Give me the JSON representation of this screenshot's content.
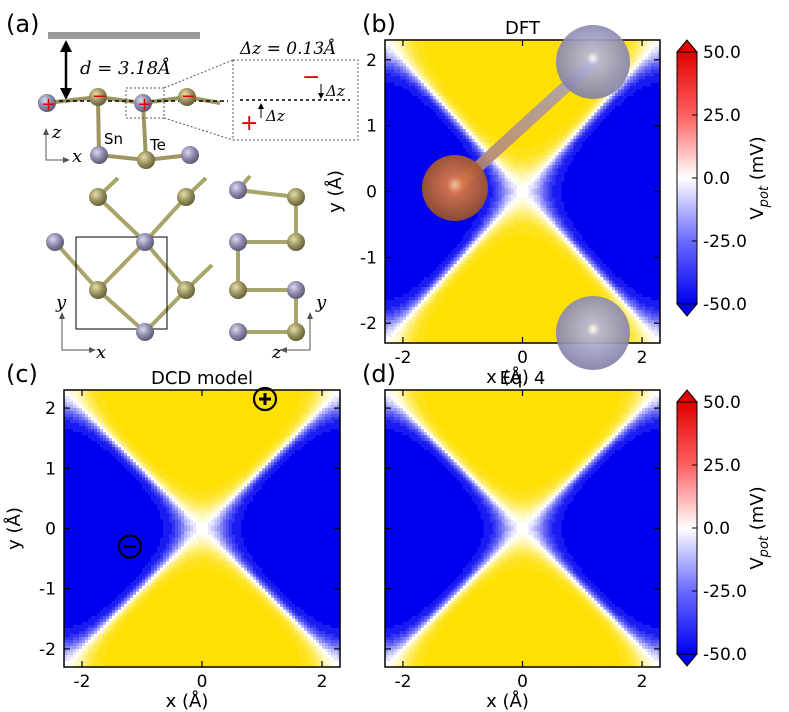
{
  "panel_labels": {
    "a": "(a)",
    "b": "(b)",
    "c": "(c)",
    "d": "(d)"
  },
  "atoms": {
    "sn_label": "Sn",
    "te_label": "Te",
    "sn_color": "#8f8cae",
    "te_color": "#9e9662"
  },
  "structure": {
    "d_label": "d = 3.18Å",
    "dz_label": "Δz = 0.13Å",
    "dz_small": "Δz",
    "axis_z": "z",
    "axis_x": "x",
    "axis_y": "y",
    "plus": "+",
    "minus": "−"
  },
  "colorbar": {
    "label": "V_pot (mV)",
    "ticks": [
      "50.0",
      "25.0",
      "0.0",
      "-25.0",
      "-50.0"
    ],
    "colormap": "bwr",
    "max_color": "#e00000",
    "min_color": "#0000f0"
  },
  "chart_data": [
    {
      "panel": "b",
      "type": "heatmap",
      "title": "DFT",
      "xlabel": "x (Å)",
      "ylabel": "y (Å)",
      "xlim": [
        -2.3,
        2.3
      ],
      "ylim": [
        -2.3,
        2.3
      ],
      "x_ticks": [
        "-2",
        "0",
        "2"
      ],
      "y_ticks": [
        "2",
        "1",
        "0",
        "-1",
        "-2"
      ],
      "zlim_mV": [
        -50,
        50
      ],
      "overlay": "SnTe molecule: Te at (-1.1, -0.1), Sn at (1.2, 2.0) and (1.2, -2.3)"
    },
    {
      "panel": "c",
      "type": "heatmap",
      "title": "DCD model",
      "xlabel": "x (Å)",
      "ylabel": "y (Å)",
      "xlim": [
        -2.3,
        2.3
      ],
      "ylim": [
        -2.3,
        2.3
      ],
      "x_ticks": [
        "-2",
        "0",
        "2"
      ],
      "y_ticks": [
        "2",
        "1",
        "0",
        "-1",
        "-2"
      ],
      "zlim_mV": [
        -50,
        50
      ],
      "charges": [
        {
          "sign": "+",
          "x": 1.05,
          "y": 2.15
        },
        {
          "sign": "-",
          "x": -1.2,
          "y": -0.3
        }
      ]
    },
    {
      "panel": "d",
      "type": "heatmap",
      "title": "Eq. 4",
      "xlabel": "x (Å)",
      "ylabel": "",
      "xlim": [
        -2.3,
        2.3
      ],
      "ylim": [
        -2.3,
        2.3
      ],
      "x_ticks": [
        "-2",
        "0",
        "2"
      ],
      "y_ticks": [],
      "zlim_mV": [
        -50,
        50
      ]
    }
  ]
}
